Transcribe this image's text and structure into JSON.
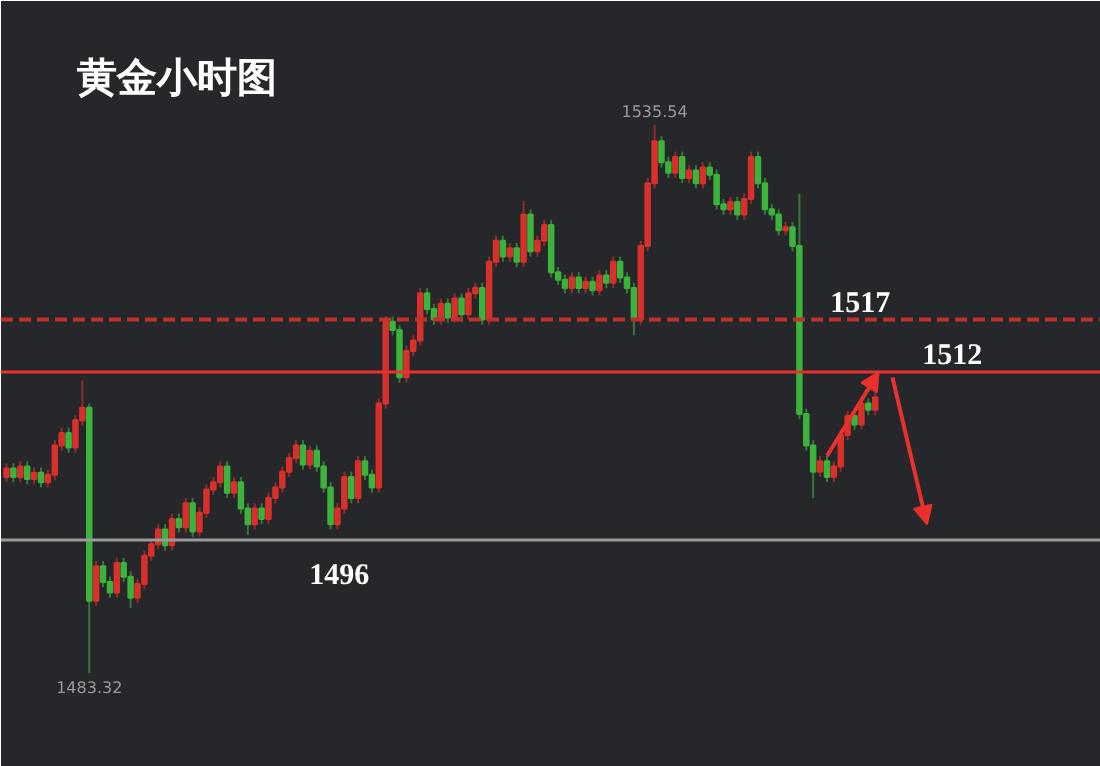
{
  "chart_data": {
    "type": "candlestick",
    "title": "黄金小时图",
    "categories": [
      null,
      null,
      null,
      null,
      null,
      null,
      null,
      null,
      null,
      null,
      null,
      null,
      null,
      null,
      null,
      null,
      null,
      null,
      null,
      null,
      null,
      null,
      null,
      null,
      null,
      null,
      null,
      null,
      null,
      null,
      null,
      null,
      null,
      null,
      null,
      null,
      null,
      null,
      null,
      null,
      null,
      null,
      null,
      null,
      null,
      null,
      null,
      null,
      null,
      null,
      null,
      null,
      null,
      null,
      null,
      null,
      null,
      null,
      null,
      null,
      null,
      null,
      null,
      null,
      null,
      null,
      null,
      null,
      null,
      null,
      null,
      null,
      null,
      null,
      null,
      null,
      null,
      null,
      null,
      null,
      null,
      null,
      null,
      null,
      null,
      null,
      null,
      null,
      null,
      null,
      null,
      null,
      null,
      null,
      null,
      null,
      null,
      null,
      null,
      null,
      null,
      null,
      null,
      null,
      null,
      null,
      null,
      null,
      null,
      null,
      null,
      null,
      null,
      null,
      null,
      null,
      null,
      null,
      null,
      null,
      null,
      null,
      null,
      null,
      null,
      null,
      null
    ],
    "ohlc": [
      [
        1502.0,
        1503.3,
        1501.5,
        1502.8
      ],
      [
        1502.8,
        1503.3,
        1501.5,
        1502.0
      ],
      [
        1502.0,
        1503.5,
        1501.5,
        1503.0
      ],
      [
        1503.0,
        1503.5,
        1501.3,
        1501.8
      ],
      [
        1501.8,
        1502.9,
        1501.3,
        1502.4
      ],
      [
        1502.4,
        1502.9,
        1501.0,
        1501.5
      ],
      [
        1501.5,
        1502.7,
        1501.0,
        1502.2
      ],
      [
        1502.2,
        1505.5,
        1501.7,
        1505.0
      ],
      [
        1505.0,
        1506.7,
        1504.5,
        1506.2
      ],
      [
        1506.2,
        1506.7,
        1504.3,
        1504.8
      ],
      [
        1504.8,
        1507.9,
        1504.3,
        1507.4
      ],
      [
        1507.4,
        1511.2,
        1506.9,
        1508.6
      ],
      [
        1508.6,
        1509.0,
        1483.32,
        1490.2
      ],
      [
        1490.2,
        1494.0,
        1489.7,
        1493.5
      ],
      [
        1493.5,
        1494.0,
        1491.5,
        1492.0
      ],
      [
        1492.0,
        1492.5,
        1490.5,
        1491.0
      ],
      [
        1491.0,
        1494.3,
        1490.5,
        1493.8
      ],
      [
        1493.8,
        1494.3,
        1492.0,
        1492.5
      ],
      [
        1492.5,
        1493.0,
        1489.5,
        1490.5
      ],
      [
        1490.5,
        1492.3,
        1490.0,
        1491.8
      ],
      [
        1491.8,
        1495.0,
        1491.3,
        1494.5
      ],
      [
        1494.5,
        1496.1,
        1494.0,
        1495.6
      ],
      [
        1495.6,
        1497.5,
        1495.1,
        1497.0
      ],
      [
        1497.0,
        1497.5,
        1495.0,
        1495.5
      ],
      [
        1495.5,
        1498.5,
        1495.0,
        1498.0
      ],
      [
        1498.0,
        1498.5,
        1496.7,
        1497.2
      ],
      [
        1497.2,
        1500.0,
        1496.7,
        1499.5
      ],
      [
        1499.5,
        1500.0,
        1496.3,
        1496.8
      ],
      [
        1496.8,
        1499.1,
        1496.3,
        1498.6
      ],
      [
        1498.6,
        1501.3,
        1498.1,
        1500.8
      ],
      [
        1500.8,
        1502.0,
        1500.3,
        1501.5
      ],
      [
        1501.5,
        1503.5,
        1501.0,
        1503.0
      ],
      [
        1503.0,
        1503.5,
        1500.0,
        1500.5
      ],
      [
        1500.5,
        1502.0,
        1500.0,
        1501.5
      ],
      [
        1501.5,
        1502.0,
        1498.5,
        1499.0
      ],
      [
        1499.0,
        1499.5,
        1496.5,
        1497.5
      ],
      [
        1497.5,
        1499.5,
        1497.0,
        1499.0
      ],
      [
        1499.0,
        1499.5,
        1497.5,
        1498.0
      ],
      [
        1498.0,
        1500.5,
        1497.5,
        1500.0
      ],
      [
        1500.0,
        1501.5,
        1499.5,
        1501.0
      ],
      [
        1501.0,
        1503.0,
        1500.5,
        1502.5
      ],
      [
        1502.5,
        1504.3,
        1502.0,
        1503.8
      ],
      [
        1503.8,
        1505.5,
        1503.3,
        1505.0
      ],
      [
        1505.0,
        1505.5,
        1502.7,
        1503.2
      ],
      [
        1503.2,
        1505.0,
        1502.7,
        1504.5
      ],
      [
        1504.5,
        1505.0,
        1502.5,
        1503.0
      ],
      [
        1503.0,
        1503.5,
        1500.5,
        1501.0
      ],
      [
        1501.0,
        1501.5,
        1497.0,
        1497.5
      ],
      [
        1497.5,
        1499.5,
        1497.0,
        1499.0
      ],
      [
        1499.0,
        1502.5,
        1498.5,
        1502.0
      ],
      [
        1502.0,
        1502.5,
        1499.5,
        1500.0
      ],
      [
        1500.0,
        1504.0,
        1499.5,
        1503.5
      ],
      [
        1503.5,
        1504.0,
        1501.7,
        1502.2
      ],
      [
        1502.2,
        1502.7,
        1500.5,
        1501.0
      ],
      [
        1501.0,
        1509.5,
        1500.5,
        1509.0
      ],
      [
        1509.0,
        1517.3,
        1508.5,
        1516.8
      ],
      [
        1516.8,
        1517.3,
        1515.5,
        1516.0
      ],
      [
        1516.0,
        1516.5,
        1511.0,
        1511.5
      ],
      [
        1511.5,
        1514.5,
        1511.0,
        1514.0
      ],
      [
        1514.0,
        1515.5,
        1513.5,
        1515.0
      ],
      [
        1515.0,
        1520.0,
        1514.5,
        1519.5
      ],
      [
        1519.5,
        1520.0,
        1517.5,
        1518.0
      ],
      [
        1518.0,
        1518.5,
        1516.5,
        1517.0
      ],
      [
        1517.0,
        1519.0,
        1516.5,
        1518.5
      ],
      [
        1518.5,
        1519.0,
        1516.7,
        1517.2
      ],
      [
        1517.2,
        1519.5,
        1516.7,
        1519.0
      ],
      [
        1519.0,
        1519.5,
        1517.0,
        1517.5
      ],
      [
        1517.5,
        1520.0,
        1517.0,
        1519.5
      ],
      [
        1519.5,
        1520.5,
        1519.0,
        1520.0
      ],
      [
        1520.0,
        1520.5,
        1516.5,
        1517.0
      ],
      [
        1517.0,
        1523.0,
        1516.5,
        1522.5
      ],
      [
        1522.5,
        1525.0,
        1522.0,
        1524.5
      ],
      [
        1524.5,
        1525.0,
        1522.5,
        1523.0
      ],
      [
        1523.0,
        1524.3,
        1522.5,
        1523.8
      ],
      [
        1523.8,
        1524.3,
        1522.0,
        1522.5
      ],
      [
        1522.5,
        1528.3,
        1522.0,
        1527.0
      ],
      [
        1527.0,
        1527.5,
        1523.0,
        1523.5
      ],
      [
        1523.5,
        1525.0,
        1523.0,
        1524.5
      ],
      [
        1524.5,
        1526.5,
        1524.0,
        1526.0
      ],
      [
        1526.0,
        1526.5,
        1521.0,
        1521.5
      ],
      [
        1521.5,
        1522.0,
        1520.3,
        1520.8
      ],
      [
        1520.8,
        1521.3,
        1519.5,
        1520.0
      ],
      [
        1520.0,
        1521.5,
        1519.5,
        1521.0
      ],
      [
        1521.0,
        1521.5,
        1519.5,
        1520.0
      ],
      [
        1520.0,
        1521.1,
        1519.5,
        1520.6
      ],
      [
        1520.6,
        1521.1,
        1519.3,
        1519.8
      ],
      [
        1519.8,
        1521.7,
        1519.3,
        1521.2
      ],
      [
        1521.2,
        1521.7,
        1520.0,
        1520.5
      ],
      [
        1520.5,
        1523.0,
        1520.0,
        1522.5
      ],
      [
        1522.5,
        1523.0,
        1520.5,
        1521.0
      ],
      [
        1521.0,
        1521.5,
        1519.5,
        1520.0
      ],
      [
        1520.0,
        1520.5,
        1515.5,
        1517.0
      ],
      [
        1517.0,
        1524.5,
        1516.5,
        1524.0
      ],
      [
        1524.0,
        1530.5,
        1523.5,
        1530.0
      ],
      [
        1530.0,
        1535.54,
        1529.5,
        1534.0
      ],
      [
        1534.0,
        1534.5,
        1531.5,
        1532.0
      ],
      [
        1532.0,
        1532.5,
        1530.5,
        1531.0
      ],
      [
        1531.0,
        1533.0,
        1530.5,
        1532.5
      ],
      [
        1532.5,
        1533.0,
        1530.0,
        1530.5
      ],
      [
        1530.5,
        1531.7,
        1530.0,
        1531.2
      ],
      [
        1531.2,
        1531.7,
        1529.5,
        1530.0
      ],
      [
        1530.0,
        1532.0,
        1529.5,
        1531.5
      ],
      [
        1531.5,
        1532.0,
        1530.3,
        1530.8
      ],
      [
        1530.8,
        1531.3,
        1527.5,
        1528.0
      ],
      [
        1528.0,
        1528.5,
        1527.0,
        1527.5
      ],
      [
        1527.5,
        1528.7,
        1527.0,
        1528.2
      ],
      [
        1528.2,
        1528.7,
        1526.5,
        1527.0
      ],
      [
        1527.0,
        1529.0,
        1526.5,
        1528.5
      ],
      [
        1528.5,
        1533.0,
        1528.0,
        1532.5
      ],
      [
        1532.5,
        1533.0,
        1529.5,
        1530.0
      ],
      [
        1530.0,
        1530.5,
        1527.0,
        1527.5
      ],
      [
        1527.5,
        1528.0,
        1526.5,
        1527.0
      ],
      [
        1527.0,
        1527.5,
        1525.0,
        1525.5
      ],
      [
        1525.5,
        1526.3,
        1525.0,
        1525.8
      ],
      [
        1525.8,
        1526.3,
        1523.5,
        1524.0
      ],
      [
        1524.0,
        1529.0,
        1507.5,
        1508.0
      ],
      [
        1508.0,
        1508.5,
        1504.5,
        1505.0
      ],
      [
        1505.0,
        1505.5,
        1500.0,
        1502.5
      ],
      [
        1502.5,
        1504.0,
        1502.0,
        1503.5
      ],
      [
        1503.5,
        1504.0,
        1501.5,
        1502.0
      ],
      [
        1502.0,
        1503.5,
        1501.5,
        1503.0
      ],
      [
        1503.0,
        1506.5,
        1502.5,
        1506.0
      ],
      [
        1506.0,
        1508.3,
        1505.5,
        1507.8
      ],
      [
        1507.8,
        1508.3,
        1506.5,
        1507.0
      ],
      [
        1507.0,
        1509.5,
        1506.5,
        1509.0
      ],
      [
        1509.0,
        1509.5,
        1507.9,
        1508.4
      ],
      [
        1508.4,
        1510.1,
        1507.9,
        1509.6
      ]
    ],
    "ref_lines": [
      {
        "axis": "y",
        "value": 1517,
        "label": "1517",
        "color": "#c0302c",
        "line_style": "dashed"
      },
      {
        "axis": "y",
        "value": 1512,
        "label": "1512",
        "color": "#e8302c",
        "line_style": "solid"
      },
      {
        "axis": "y",
        "value": 1496,
        "label": "1496",
        "color": "#9a9a9a",
        "line_style": "solid"
      }
    ],
    "annotations": [
      {
        "text": "1535.54",
        "y": 1535.54
      },
      {
        "text": "1483.32",
        "y": 1483.32
      }
    ],
    "grid": false,
    "tick_labels": false
  }
}
